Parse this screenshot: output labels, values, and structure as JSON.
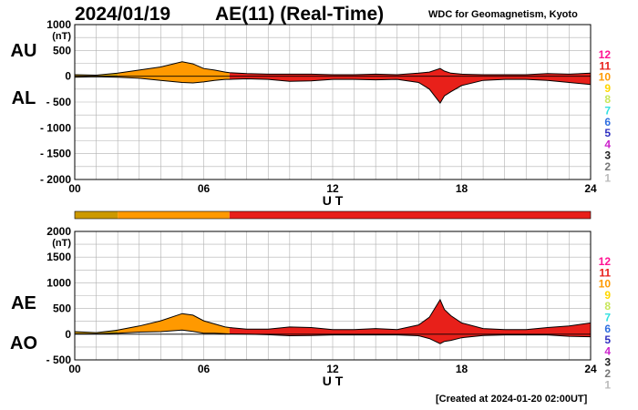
{
  "header": {
    "date": "2024/01/19",
    "title": "AE(11) (Real-Time)",
    "source": "WDC for Geomagnetism, Kyoto"
  },
  "footer": {
    "created": "[Created at 2024-01-20 02:00UT]"
  },
  "station_count_legend": {
    "labels": [
      "12",
      "11",
      "10",
      "9",
      "8",
      "7",
      "6",
      "5",
      "4",
      "3",
      "2",
      "1"
    ],
    "colors": [
      "#ff1493",
      "#e8201a",
      "#ff9900",
      "#ffd700",
      "#c8e65a",
      "#33e0e0",
      "#2f6ee0",
      "#3030c0",
      "#cc22cc",
      "#222222",
      "#777777",
      "#bbbbbb"
    ]
  },
  "chart_data": [
    {
      "type": "area",
      "panel": "AU/AL",
      "side_labels": [
        "AU",
        "AL"
      ],
      "unit_label": "(nT)",
      "xlabel": "U T",
      "xlim": [
        0,
        24
      ],
      "xticks": [
        "00",
        "06",
        "12",
        "18",
        "24"
      ],
      "ylim": [
        -2000,
        1000
      ],
      "yticks": [
        "1000",
        "500",
        "0",
        "- 500",
        "- 1000",
        "- 1500",
        "- 2000"
      ],
      "grid": true,
      "x": [
        0,
        1,
        2,
        3,
        4,
        5,
        5.5,
        6,
        6.5,
        7,
        7.2,
        8,
        9,
        10,
        11,
        12,
        13,
        14,
        15,
        16,
        16.5,
        17,
        17.2,
        17.5,
        18,
        19,
        20,
        21,
        22,
        23,
        24
      ],
      "series": [
        {
          "key": "AU",
          "values": [
            30,
            20,
            60,
            120,
            180,
            280,
            240,
            150,
            120,
            80,
            70,
            50,
            40,
            40,
            40,
            30,
            30,
            40,
            30,
            60,
            80,
            150,
            100,
            60,
            40,
            30,
            30,
            30,
            50,
            40,
            60
          ]
        },
        {
          "key": "AL",
          "values": [
            -20,
            -10,
            -20,
            -40,
            -80,
            -120,
            -130,
            -110,
            -80,
            -60,
            -60,
            -50,
            -60,
            -100,
            -90,
            -60,
            -60,
            -70,
            -60,
            -120,
            -250,
            -520,
            -380,
            -300,
            -180,
            -80,
            -60,
            -60,
            -80,
            -120,
            -160
          ]
        }
      ],
      "fill_color_by_hour": [
        {
          "from": 0,
          "to": 2,
          "color": "#cc9900"
        },
        {
          "from": 2,
          "to": 7.2,
          "color": "#ff9900"
        },
        {
          "from": 7.2,
          "to": 24,
          "color": "#e8201a"
        }
      ]
    },
    {
      "type": "area",
      "panel": "AE/AO",
      "side_labels": [
        "AE",
        "AO"
      ],
      "unit_label": "(nT)",
      "xlabel": "U T",
      "xlim": [
        0,
        24
      ],
      "xticks": [
        "00",
        "06",
        "12",
        "18",
        "24"
      ],
      "ylim": [
        -500,
        2000
      ],
      "yticks": [
        "2000",
        "1500",
        "1000",
        "500",
        "0",
        "- 500"
      ],
      "grid": true,
      "x": [
        0,
        1,
        2,
        3,
        4,
        5,
        5.5,
        6,
        6.5,
        7,
        7.2,
        8,
        9,
        10,
        11,
        12,
        13,
        14,
        15,
        16,
        16.5,
        17,
        17.2,
        17.5,
        18,
        19,
        20,
        21,
        22,
        23,
        24
      ],
      "series": [
        {
          "key": "AE",
          "values": [
            50,
            30,
            80,
            160,
            260,
            400,
            370,
            260,
            200,
            140,
            130,
            100,
            100,
            140,
            130,
            90,
            90,
            110,
            90,
            180,
            330,
            670,
            480,
            360,
            220,
            110,
            90,
            90,
            130,
            160,
            220
          ]
        },
        {
          "key": "AO",
          "values": [
            5,
            5,
            20,
            40,
            50,
            80,
            55,
            20,
            20,
            10,
            5,
            0,
            -10,
            -30,
            -25,
            -15,
            -15,
            -15,
            -15,
            -30,
            -85,
            -185,
            -140,
            -120,
            -70,
            -25,
            -15,
            -15,
            -15,
            -40,
            -50
          ]
        }
      ],
      "fill_color_by_hour": [
        {
          "from": 0,
          "to": 2,
          "color": "#cc9900"
        },
        {
          "from": 2,
          "to": 7.2,
          "color": "#ff9900"
        },
        {
          "from": 7.2,
          "to": 24,
          "color": "#e8201a"
        }
      ]
    }
  ]
}
